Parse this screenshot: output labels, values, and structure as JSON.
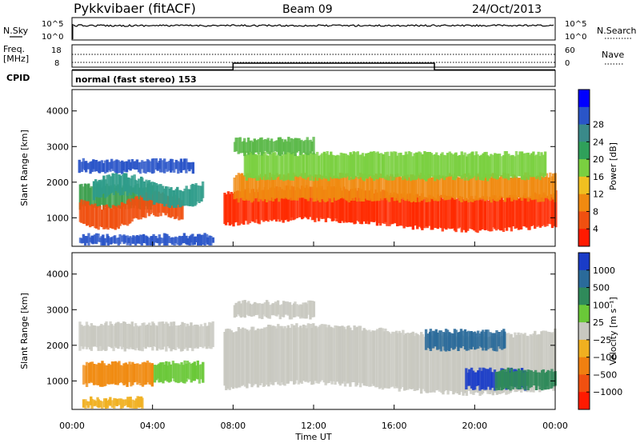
{
  "header": {
    "station": "Pykkvibaer (fitACF)",
    "beam": "Beam 09",
    "date": "24/Oct/2013"
  },
  "strip_nsky": {
    "label": "N.Sky",
    "left_ticks": [
      "10^5",
      "10^0"
    ],
    "right_ticks": [
      "10^5",
      "10^0"
    ],
    "right_label": "N.Search"
  },
  "strip_freq": {
    "label_top": "Freq.",
    "label_unit": "[MHz]",
    "left_ticks": [
      "18",
      "8"
    ],
    "right_ticks": [
      "60",
      "0"
    ],
    "right_label": "Nave",
    "freq_segments": [
      {
        "t0": 0.0,
        "t1": 8.0,
        "mhz": 10.0
      },
      {
        "t0": 8.0,
        "t1": 18.0,
        "mhz": 13.0
      },
      {
        "t0": 18.0,
        "t1": 24.0,
        "mhz": 10.0
      }
    ]
  },
  "strip_cpid": {
    "label": "CPID",
    "mode_text": "normal (fast stereo) 153"
  },
  "chart_data": [
    {
      "type": "heatmap",
      "name": "power",
      "ylabel": "Slant Range [km]",
      "yticks": [
        "1000",
        "2000",
        "3000",
        "4000"
      ],
      "ylim": [
        200,
        4600
      ],
      "xlim": [
        0,
        24
      ],
      "colorbar": {
        "label": "Power [dB]",
        "ticks": [
          "4",
          "8",
          "12",
          "16",
          "20",
          "24",
          "28"
        ],
        "colors": [
          "#0000ff",
          "#2a55c8",
          "#3a8a8a",
          "#2fa05a",
          "#7ad040",
          "#f0c020",
          "#f08a10",
          "#f05010",
          "#ff1a00"
        ]
      },
      "bands": [
        {
          "t0": 0.3,
          "t1": 6.0,
          "r0": 2300,
          "r1": 2600,
          "color": "#2a55c8",
          "curve": 0.0
        },
        {
          "t0": 0.3,
          "t1": 4.0,
          "r0": 1300,
          "r1": 1900,
          "color": "#3fa050",
          "curve": 0.0
        },
        {
          "t0": 0.3,
          "t1": 5.5,
          "r0": 900,
          "r1": 1500,
          "color": "#f05010",
          "curve": -200
        },
        {
          "t0": 1.0,
          "t1": 6.5,
          "r0": 1500,
          "r1": 2000,
          "color": "#2f9c8a",
          "curve": 200
        },
        {
          "t0": 7.5,
          "t1": 24.0,
          "r0": 800,
          "r1": 1700,
          "color": "#ff2a00",
          "curve": 150
        },
        {
          "t0": 8.0,
          "t1": 24.0,
          "r0": 1500,
          "r1": 2200,
          "color": "#f08a10",
          "curve": 0.0
        },
        {
          "t0": 8.5,
          "t1": 23.5,
          "r0": 2100,
          "r1": 2800,
          "color": "#7ad040",
          "curve": 0.0
        },
        {
          "t0": 8.0,
          "t1": 12.0,
          "r0": 2800,
          "r1": 3200,
          "color": "#5ab848",
          "curve": 0.0
        },
        {
          "t0": 0.3,
          "t1": 7.0,
          "r0": 250,
          "r1": 500,
          "color": "#2a55c8",
          "curve": 0.0
        }
      ]
    },
    {
      "type": "heatmap",
      "name": "velocity",
      "ylabel": "Slant Range [km]",
      "yticks": [
        "1000",
        "2000",
        "3000",
        "4000"
      ],
      "ylim": [
        200,
        4600
      ],
      "xlim": [
        0,
        24
      ],
      "xticks": [
        "00:00",
        "04:00",
        "08:00",
        "12:00",
        "16:00",
        "20:00",
        "00:00"
      ],
      "xlabel": "Time UT",
      "colorbar": {
        "label": "Velocity [m s⁻¹]",
        "ticks": [
          "1000",
          "500",
          "100",
          "25",
          "−25",
          "−100",
          "−500",
          "−1000"
        ],
        "colors": [
          "#1a3cc8",
          "#2a6a9a",
          "#2f8a5a",
          "#6ac838",
          "#c8c8c0",
          "#f0b020",
          "#f08010",
          "#f05010",
          "#ff1a00"
        ]
      },
      "bands": [
        {
          "t0": 0.3,
          "t1": 7.0,
          "r0": 1900,
          "r1": 2600,
          "color": "#c8c8c0",
          "curve": 0.0
        },
        {
          "t0": 7.5,
          "t1": 24.0,
          "r0": 800,
          "r1": 2400,
          "color": "#c8c8c0",
          "curve": 150
        },
        {
          "t0": 0.5,
          "t1": 4.0,
          "r0": 900,
          "r1": 1500,
          "color": "#f08a10",
          "curve": 0.0
        },
        {
          "t0": 4.0,
          "t1": 6.5,
          "r0": 1000,
          "r1": 1500,
          "color": "#6ac838",
          "curve": 0.0
        },
        {
          "t0": 19.5,
          "t1": 22.5,
          "r0": 800,
          "r1": 1300,
          "color": "#1a3cc8",
          "curve": 0.0
        },
        {
          "t0": 21.0,
          "t1": 24.0,
          "r0": 800,
          "r1": 1300,
          "color": "#2f8a5a",
          "curve": 0.0
        },
        {
          "t0": 17.5,
          "t1": 21.5,
          "r0": 1900,
          "r1": 2400,
          "color": "#2a6a9a",
          "curve": 0.0
        },
        {
          "t0": 8.0,
          "t1": 12.0,
          "r0": 2800,
          "r1": 3200,
          "color": "#c8c8c0",
          "curve": 0.0
        },
        {
          "t0": 0.5,
          "t1": 3.5,
          "r0": 250,
          "r1": 500,
          "color": "#f0b020",
          "curve": 0.0
        }
      ]
    }
  ]
}
